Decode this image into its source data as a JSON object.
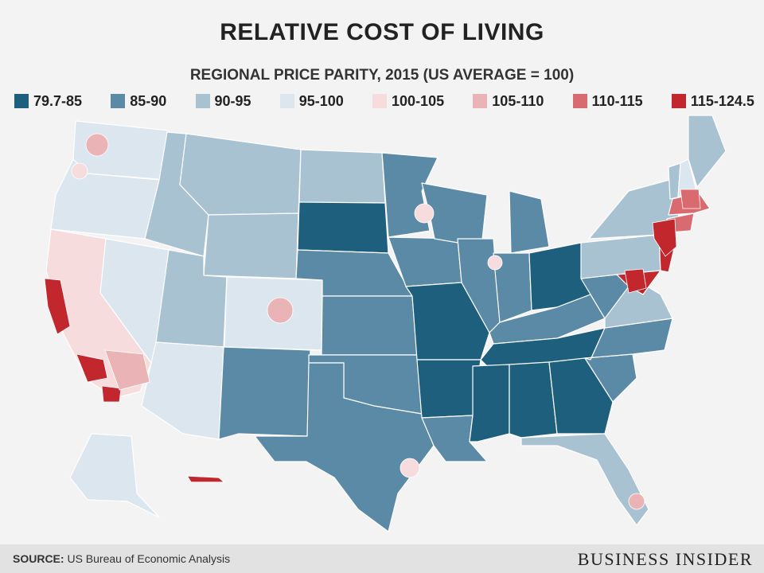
{
  "header": {
    "title": "RELATIVE COST OF LIVING",
    "subtitle": "REGIONAL PRICE PARITY, 2015 (US AVERAGE = 100)"
  },
  "legend": [
    {
      "label": "79.7-85",
      "color": "#1f5f7e"
    },
    {
      "label": "85-90",
      "color": "#5b8aa6"
    },
    {
      "label": "90-95",
      "color": "#a9c2d2"
    },
    {
      "label": "95-100",
      "color": "#dbe6ee"
    },
    {
      "label": "100-105",
      "color": "#f6dcdc"
    },
    {
      "label": "105-110",
      "color": "#eab3b6"
    },
    {
      "label": "110-115",
      "color": "#d96b70"
    },
    {
      "label": "115-124.5",
      "color": "#c1272d"
    }
  ],
  "footer": {
    "source_label": "SOURCE:",
    "source_text": "US Bureau of Economic Analysis",
    "brand": "BUSINESS INSIDER"
  },
  "map": {
    "regions": [
      {
        "name": "Washington",
        "level": 3
      },
      {
        "name": "Oregon",
        "level": 3
      },
      {
        "name": "California",
        "level": 4
      },
      {
        "name": "Nevada",
        "level": 3
      },
      {
        "name": "Idaho",
        "level": 2
      },
      {
        "name": "Montana",
        "level": 2
      },
      {
        "name": "Wyoming",
        "level": 2
      },
      {
        "name": "Utah",
        "level": 2
      },
      {
        "name": "Arizona",
        "level": 3
      },
      {
        "name": "Colorado",
        "level": 3
      },
      {
        "name": "New Mexico",
        "level": 1
      },
      {
        "name": "North Dakota",
        "level": 2
      },
      {
        "name": "South Dakota",
        "level": 0
      },
      {
        "name": "Nebraska",
        "level": 1
      },
      {
        "name": "Kansas",
        "level": 1
      },
      {
        "name": "Oklahoma",
        "level": 1
      },
      {
        "name": "Texas",
        "level": 1
      },
      {
        "name": "Minnesota",
        "level": 1
      },
      {
        "name": "Iowa",
        "level": 1
      },
      {
        "name": "Missouri",
        "level": 0
      },
      {
        "name": "Arkansas",
        "level": 0
      },
      {
        "name": "Louisiana",
        "level": 1
      },
      {
        "name": "Wisconsin",
        "level": 1
      },
      {
        "name": "Illinois",
        "level": 1
      },
      {
        "name": "Michigan",
        "level": 1
      },
      {
        "name": "Indiana",
        "level": 1
      },
      {
        "name": "Ohio",
        "level": 0
      },
      {
        "name": "Kentucky",
        "level": 1
      },
      {
        "name": "Tennessee",
        "level": 0
      },
      {
        "name": "Mississippi",
        "level": 0
      },
      {
        "name": "Alabama",
        "level": 0
      },
      {
        "name": "Georgia",
        "level": 0
      },
      {
        "name": "Florida",
        "level": 2
      },
      {
        "name": "South Carolina",
        "level": 1
      },
      {
        "name": "North Carolina",
        "level": 1
      },
      {
        "name": "Virginia",
        "level": 2
      },
      {
        "name": "West Virginia",
        "level": 1
      },
      {
        "name": "Pennsylvania",
        "level": 2
      },
      {
        "name": "New York",
        "level": 2
      },
      {
        "name": "New Jersey",
        "level": 7
      },
      {
        "name": "Maryland",
        "level": 7
      },
      {
        "name": "Connecticut",
        "level": 6
      },
      {
        "name": "Massachusetts",
        "level": 6
      },
      {
        "name": "Vermont",
        "level": 2
      },
      {
        "name": "New Hampshire",
        "level": 3
      },
      {
        "name": "Maine",
        "level": 2
      },
      {
        "name": "Alaska",
        "level": 3
      },
      {
        "name": "Hawaii",
        "level": 7
      }
    ],
    "metros": [
      {
        "name": "Seattle",
        "level": 5
      },
      {
        "name": "Portland",
        "level": 4
      },
      {
        "name": "San Francisco Bay",
        "level": 7
      },
      {
        "name": "Los Angeles",
        "level": 7
      },
      {
        "name": "San Diego",
        "level": 7
      },
      {
        "name": "Inland Empire",
        "level": 5
      },
      {
        "name": "Denver",
        "level": 5
      },
      {
        "name": "Minneapolis",
        "level": 4
      },
      {
        "name": "Chicago",
        "level": 4
      },
      {
        "name": "New York City",
        "level": 7
      },
      {
        "name": "Washington DC",
        "level": 7
      },
      {
        "name": "Boston",
        "level": 6
      },
      {
        "name": "Houston",
        "level": 4
      },
      {
        "name": "Miami",
        "level": 5
      }
    ]
  }
}
